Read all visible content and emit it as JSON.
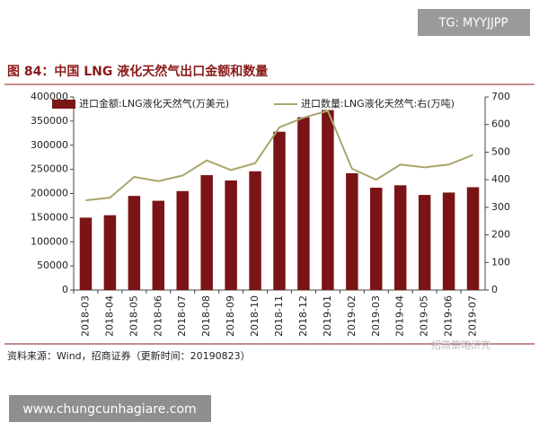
{
  "watermark": "TG: MYYJJPP",
  "source_note": "资料来源：Wind，招商证券（更新时间：20190823）",
  "brand_watermark": "招商策略研究",
  "website": "www.chungcunhagiare.com",
  "chart_data": {
    "type": "bar-line",
    "title": "图 84：中国 LNG 液化天然气出口金额和数量",
    "categories": [
      "2018-03",
      "2018-04",
      "2018-05",
      "2018-06",
      "2018-07",
      "2018-08",
      "2018-09",
      "2018-10",
      "2018-11",
      "2018-12",
      "2019-01",
      "2019-02",
      "2019-03",
      "2019-04",
      "2019-05",
      "2019-06",
      "2019-07"
    ],
    "series": [
      {
        "name": "进口金额:LNG液化天然气(万美元)",
        "color": "#7a1416",
        "type": "bar",
        "values": [
          150000,
          155000,
          195000,
          185000,
          205000,
          238000,
          227000,
          246000,
          328000,
          358000,
          373000,
          242000,
          212000,
          217000,
          197000,
          202000,
          213000
        ]
      },
      {
        "name": "进口数量:LNG液化天然气:右(万吨)",
        "color": "#a9a66c",
        "type": "line",
        "axis": "y2",
        "values": [
          325,
          335,
          410,
          395,
          415,
          470,
          435,
          460,
          590,
          625,
          650,
          440,
          400,
          455,
          445,
          455,
          490
        ]
      }
    ],
    "ylim": [
      0,
      400000
    ],
    "yticks": [
      0,
      50000,
      100000,
      150000,
      200000,
      250000,
      300000,
      350000,
      400000
    ],
    "y2lim": [
      0,
      700
    ],
    "y2ticks": [
      0,
      100,
      200,
      300,
      400,
      500,
      600,
      700
    ]
  }
}
